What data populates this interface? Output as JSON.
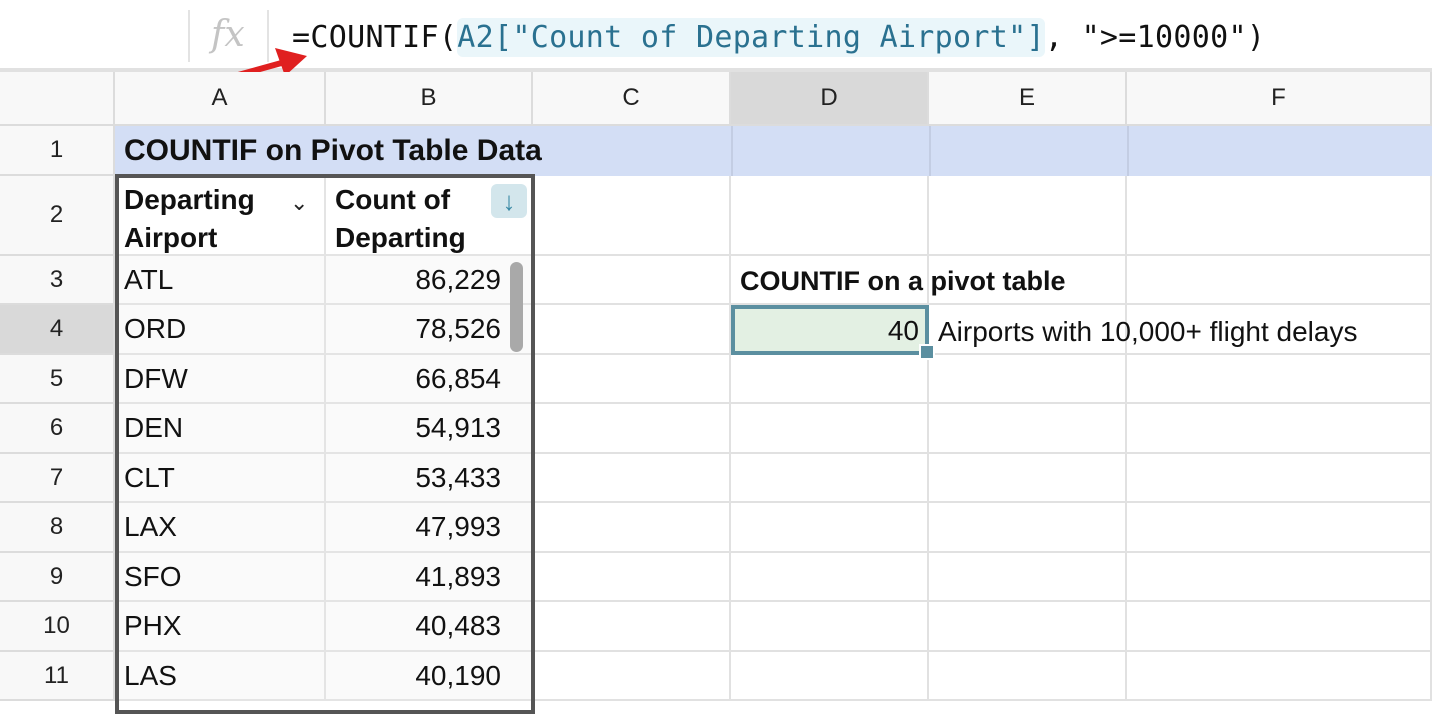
{
  "formula_bar": {
    "fx_label": "fx",
    "formula_prefix": "=COUNTIF(",
    "formula_ref": "A2[\"Count of Departing Airport\"]",
    "formula_suffix": ", \">=10000\")"
  },
  "columns": [
    "A",
    "B",
    "C",
    "D",
    "E",
    "F"
  ],
  "rows": [
    "1",
    "2",
    "3",
    "4",
    "5",
    "6",
    "7",
    "8",
    "9",
    "10",
    "11"
  ],
  "selected_column": "D",
  "selected_row": "4",
  "title": "COUNTIF on Pivot Table Data",
  "pivot": {
    "header_a_line1": "Departing",
    "header_a_line2": "Airport",
    "header_b_line1": "Count of",
    "header_b_line2": "Departing",
    "sort_icon": "arrow-down-icon",
    "rows": [
      {
        "airport": "ATL",
        "count": "86,229"
      },
      {
        "airport": "ORD",
        "count": "78,526"
      },
      {
        "airport": "DFW",
        "count": "66,854"
      },
      {
        "airport": "DEN",
        "count": "54,913"
      },
      {
        "airport": "CLT",
        "count": "53,433"
      },
      {
        "airport": "LAX",
        "count": "47,993"
      },
      {
        "airport": "SFO",
        "count": "41,893"
      },
      {
        "airport": "PHX",
        "count": "40,483"
      },
      {
        "airport": "LAS",
        "count": "40,190"
      }
    ]
  },
  "side": {
    "heading": "COUNTIF on a pivot table",
    "result": "40",
    "result_label": "Airports with 10,000+ flight delays"
  },
  "colors": {
    "title_band": "#d3def5",
    "selected_cell_fill": "#e3f0e3",
    "selected_cell_border": "#5b8fa0",
    "arrow": "#e02020",
    "ref_highlight": "#2a7190"
  }
}
